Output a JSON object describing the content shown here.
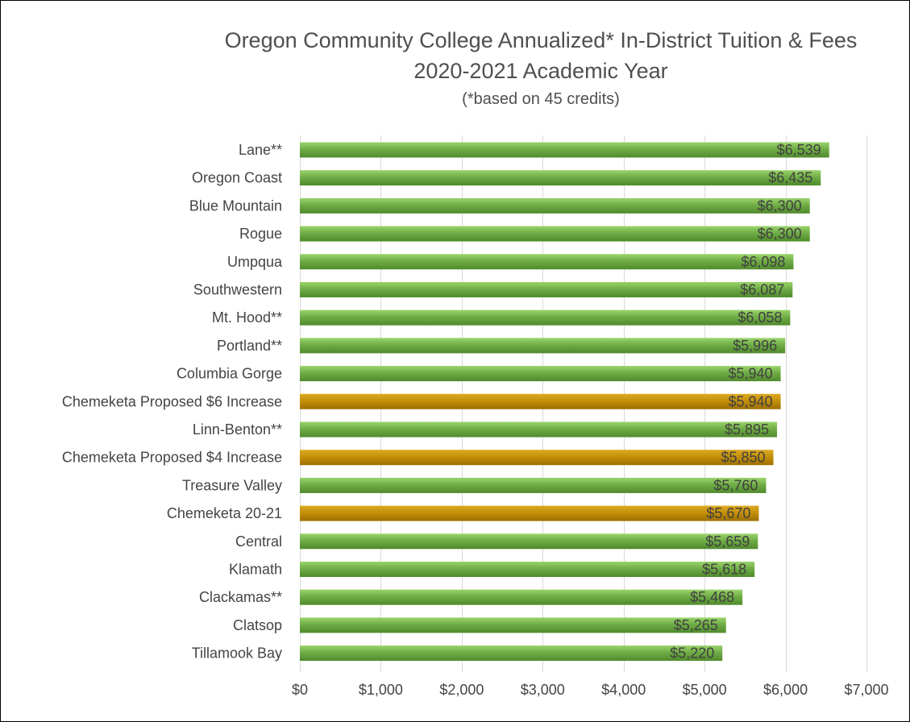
{
  "chart_data": {
    "type": "bar",
    "orientation": "horizontal",
    "title": "Oregon Community College Annualized* In-District Tuition & Fees",
    "title_line2": "2020-2021 Academic Year",
    "subtitle": "(*based on 45 credits)",
    "categories": [
      "Lane**",
      "Oregon Coast",
      "Blue Mountain",
      "Rogue",
      "Umpqua",
      "Southwestern",
      "Mt. Hood**",
      "Portland**",
      "Columbia Gorge",
      "Chemeketa Proposed $6 Increase",
      "Linn-Benton**",
      "Chemeketa Proposed $4 Increase",
      "Treasure Valley",
      "Chemeketa 20-21",
      "Central",
      "Klamath",
      "Clackamas**",
      "Clatsop",
      "Tillamook Bay"
    ],
    "values": [
      6539,
      6435,
      6300,
      6300,
      6098,
      6087,
      6058,
      5996,
      5940,
      5940,
      5895,
      5850,
      5760,
      5670,
      5659,
      5618,
      5468,
      5265,
      5220
    ],
    "data_labels": [
      "$6,539",
      "$6,435",
      "$6,300",
      "$6,300",
      "$6,098",
      "$6,087",
      "$6,058",
      "$5,996",
      "$5,940",
      "$5,940",
      "$5,895",
      "$5,850",
      "$5,760",
      "$5,670",
      "$5,659",
      "$5,618",
      "$5,468",
      "$5,265",
      "$5,220"
    ],
    "highlight": [
      false,
      false,
      false,
      false,
      false,
      false,
      false,
      false,
      false,
      true,
      false,
      true,
      false,
      true,
      false,
      false,
      false,
      false,
      false
    ],
    "xlim": [
      0,
      7000
    ],
    "x_ticks": [
      0,
      1000,
      2000,
      3000,
      4000,
      5000,
      6000,
      7000
    ],
    "x_tick_labels": [
      "$0",
      "$1,000",
      "$2,000",
      "$3,000",
      "$4,000",
      "$5,000",
      "$6,000",
      "$7,000"
    ],
    "grid": true,
    "legend": "none",
    "colors": {
      "bar": "#70ad47",
      "bar_light": "#9bd46b",
      "bar_dark": "#4f8a2b",
      "highlight": "#c4900a",
      "highlight_light": "#dcaa22",
      "highlight_dark": "#9c6f00"
    }
  }
}
